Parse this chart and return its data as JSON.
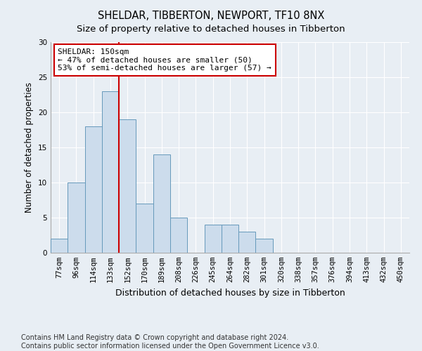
{
  "title": "SHELDAR, TIBBERTON, NEWPORT, TF10 8NX",
  "subtitle": "Size of property relative to detached houses in Tibberton",
  "xlabel": "Distribution of detached houses by size in Tibberton",
  "ylabel": "Number of detached properties",
  "bar_labels": [
    "77sqm",
    "96sqm",
    "114sqm",
    "133sqm",
    "152sqm",
    "170sqm",
    "189sqm",
    "208sqm",
    "226sqm",
    "245sqm",
    "264sqm",
    "282sqm",
    "301sqm",
    "320sqm",
    "338sqm",
    "357sqm",
    "376sqm",
    "394sqm",
    "413sqm",
    "432sqm",
    "450sqm"
  ],
  "bar_values": [
    2,
    10,
    18,
    23,
    19,
    7,
    14,
    5,
    0,
    4,
    4,
    3,
    2,
    0,
    0,
    0,
    0,
    0,
    0,
    0,
    0
  ],
  "bar_color": "#ccdcec",
  "bar_edgecolor": "#6699bb",
  "ylim": [
    0,
    30
  ],
  "yticks": [
    0,
    5,
    10,
    15,
    20,
    25,
    30
  ],
  "vline_index": 4,
  "vline_color": "#cc0000",
  "annotation_text": "SHELDAR: 150sqm\n← 47% of detached houses are smaller (50)\n53% of semi-detached houses are larger (57) →",
  "annotation_box_color": "#ffffff",
  "annotation_box_edgecolor": "#cc0000",
  "footer_line1": "Contains HM Land Registry data © Crown copyright and database right 2024.",
  "footer_line2": "Contains public sector information licensed under the Open Government Licence v3.0.",
  "background_color": "#e8eef4",
  "plot_background_color": "#e8eef4",
  "grid_color": "#ffffff",
  "title_fontsize": 10.5,
  "subtitle_fontsize": 9.5,
  "tick_fontsize": 7.5,
  "xlabel_fontsize": 9,
  "ylabel_fontsize": 8.5,
  "footer_fontsize": 7,
  "annotation_fontsize": 8
}
